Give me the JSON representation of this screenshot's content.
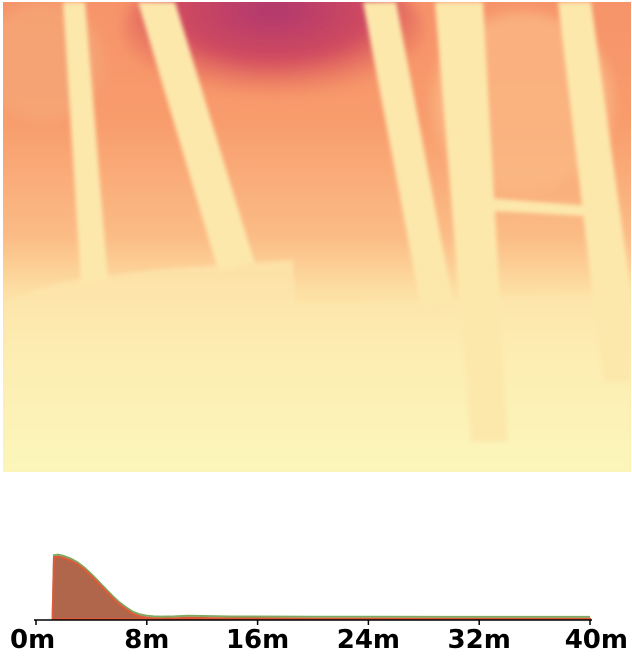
{
  "chart_data": {
    "type": "area",
    "title": "",
    "xlabel": "",
    "ylabel": "",
    "x_unit": "m",
    "xlim": [
      0,
      40
    ],
    "xticks": [
      0,
      8,
      16,
      24,
      32,
      40
    ],
    "tick_labels": [
      "0m",
      "8m",
      "16m",
      "24m",
      "32m",
      "40m"
    ],
    "grid": false,
    "legend": "none",
    "colors": {
      "fill": "#b0664a",
      "stroke": "#e0583a",
      "outline": "#7fa860",
      "axis": "#000000"
    },
    "series": [
      {
        "x": [
          1.2,
          1.3,
          1.6,
          2.0,
          2.5,
          3.0,
          3.5,
          4.0,
          4.5,
          5.0,
          5.5,
          6.0,
          6.5,
          7.0,
          7.5,
          8.0,
          8.5,
          9.0,
          10.0,
          11.0,
          12.0,
          14.0,
          20.0,
          30.0,
          40.0
        ],
        "y": [
          0.0,
          0.95,
          0.96,
          0.94,
          0.9,
          0.84,
          0.76,
          0.66,
          0.55,
          0.44,
          0.33,
          0.23,
          0.15,
          0.08,
          0.04,
          0.02,
          0.01,
          0.005,
          0.01,
          0.02,
          0.015,
          0.008,
          0.004,
          0.002,
          0.001
        ]
      }
    ]
  },
  "image": {
    "kind": "depth-map",
    "palette": [
      "#b0386e",
      "#e0624f",
      "#f6936a",
      "#fbbf87",
      "#fce3a3",
      "#fcf6b8"
    ]
  }
}
